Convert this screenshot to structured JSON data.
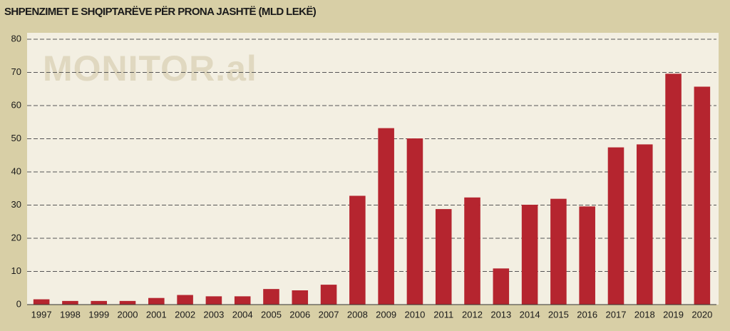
{
  "chart_data": {
    "type": "bar",
    "title": "SHPENZIMET E SHQIPTARËVE PËR PRONA JASHTË (MLD LEKË)",
    "watermark": "MONITOR.al",
    "categories": [
      "1997",
      "1998",
      "1999",
      "2000",
      "2001",
      "2002",
      "2003",
      "2004",
      "2005",
      "2006",
      "2007",
      "2008",
      "2009",
      "2010",
      "2011",
      "2012",
      "2013",
      "2014",
      "2015",
      "2016",
      "2017",
      "2018",
      "2019",
      "2020"
    ],
    "values": [
      1.6,
      1.1,
      1.1,
      1.1,
      2.0,
      2.9,
      2.5,
      2.5,
      4.7,
      4.3,
      6.0,
      32.8,
      53.2,
      50.1,
      28.8,
      32.3,
      10.9,
      30.1,
      31.9,
      29.6,
      47.4,
      48.3,
      69.6,
      65.7
    ],
    "color": "#b5252f",
    "ylim": [
      0,
      80
    ],
    "yticks": [
      0,
      10,
      20,
      30,
      40,
      50,
      60,
      70,
      80
    ],
    "grid": true
  }
}
